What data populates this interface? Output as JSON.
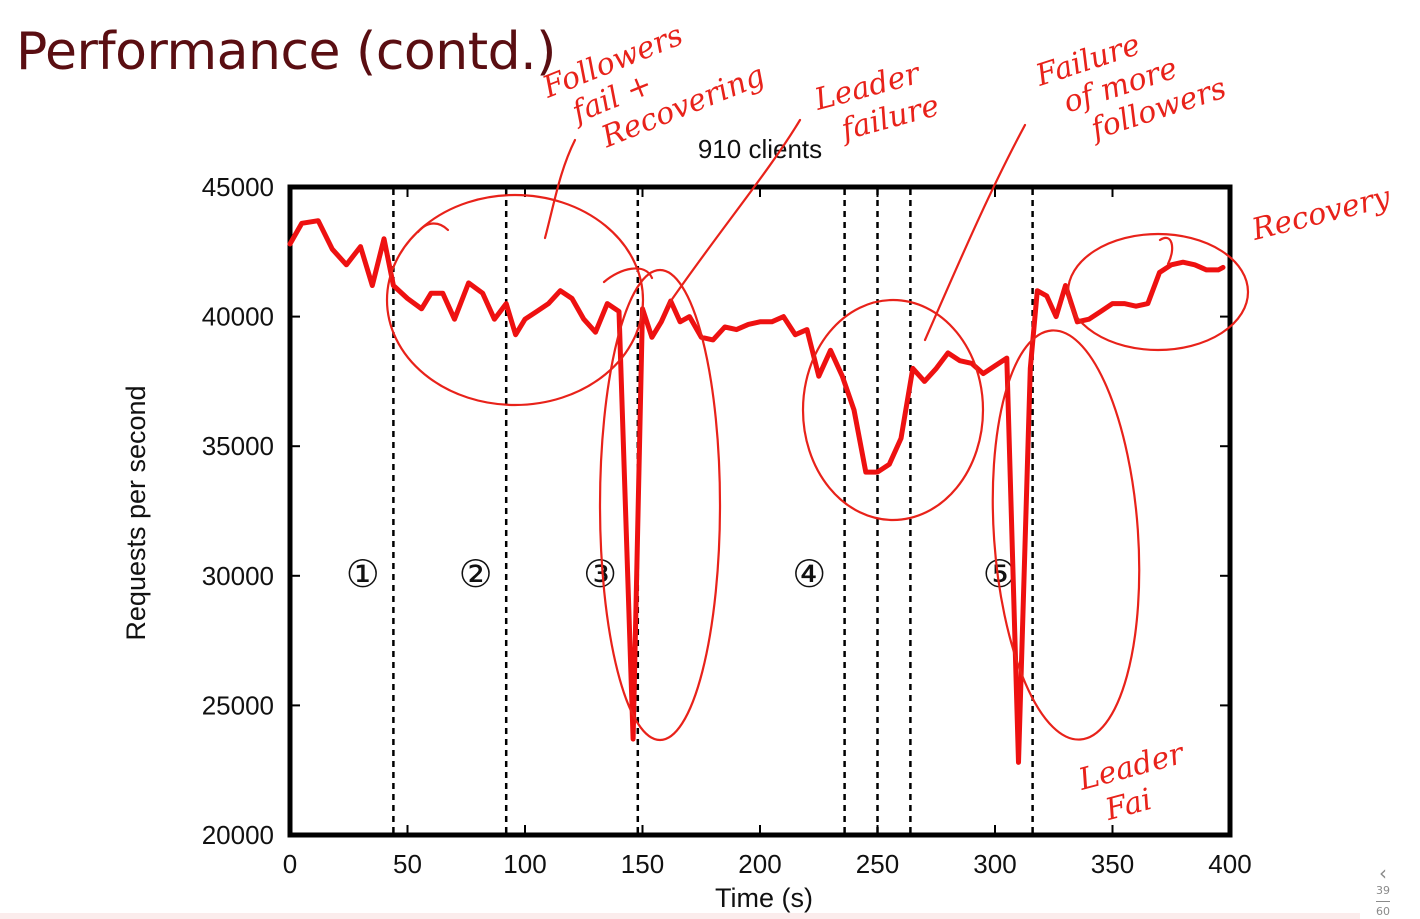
{
  "slide": {
    "title": "Performance (contd.)",
    "page_current": "39",
    "page_total": "60",
    "nav_icon": "chevron-left-icon"
  },
  "chart_data": {
    "type": "line",
    "title": "910 clients",
    "xlabel": "Time (s)",
    "ylabel": "Requests per second",
    "xlim": [
      0,
      400
    ],
    "ylim": [
      20000,
      45000
    ],
    "xticks": [
      0,
      50,
      100,
      150,
      200,
      250,
      300,
      350,
      400
    ],
    "yticks": [
      20000,
      25000,
      30000,
      35000,
      40000,
      45000
    ],
    "grid": false,
    "series": [
      {
        "color": "#ee1111",
        "x": [
          0,
          5,
          12,
          18,
          24,
          30,
          35,
          40,
          44,
          50,
          56,
          60,
          65,
          70,
          76,
          82,
          87,
          92,
          96,
          100,
          105,
          110,
          115,
          120,
          125,
          130,
          135,
          140,
          146,
          150,
          154,
          158,
          162,
          166,
          170,
          175,
          180,
          185,
          190,
          195,
          200,
          205,
          210,
          215,
          220,
          225,
          230,
          235,
          240,
          245,
          250,
          255,
          260,
          265,
          270,
          275,
          280,
          285,
          290,
          295,
          300,
          305,
          310,
          315,
          318,
          322,
          326,
          330,
          335,
          340,
          345,
          350,
          355,
          360,
          365,
          370,
          375,
          380,
          385,
          390,
          395,
          397
        ],
        "y": [
          42800,
          43600,
          43700,
          42600,
          42000,
          42700,
          41200,
          43000,
          41200,
          40700,
          40300,
          40900,
          40900,
          39900,
          41300,
          40900,
          39900,
          40500,
          39300,
          39900,
          40200,
          40500,
          41000,
          40700,
          39900,
          39400,
          40500,
          40200,
          23700,
          40300,
          39200,
          39800,
          40600,
          39800,
          40000,
          39200,
          39100,
          39600,
          39500,
          39700,
          39800,
          39800,
          40000,
          39300,
          39500,
          37700,
          38700,
          37700,
          36400,
          34000,
          34000,
          34300,
          35300,
          38000,
          37500,
          38000,
          38600,
          38300,
          38200,
          37800,
          38100,
          38400,
          22800,
          38000,
          41000,
          40800,
          40000,
          41200,
          39800,
          39900,
          40200,
          40500,
          40500,
          40400,
          40500,
          41700,
          42000,
          42100,
          42000,
          41800,
          41800,
          41900
        ]
      }
    ],
    "phase_lines": [
      44,
      92,
      148,
      236,
      250,
      264,
      316
    ],
    "phase_labels": [
      {
        "x": 31,
        "text": "①"
      },
      {
        "x": 79,
        "text": "②"
      },
      {
        "x": 132,
        "text": "③"
      },
      {
        "x": 221,
        "text": "④"
      },
      {
        "x": 302,
        "text": "⑤"
      }
    ],
    "annotations": [
      {
        "lines": [
          "Followers",
          "fail +",
          "Recovering"
        ]
      },
      {
        "lines": [
          "Leader",
          "failure"
        ]
      },
      {
        "lines": [
          "Failure",
          "of more",
          "followers"
        ]
      },
      {
        "lines": [
          "Recovery"
        ]
      },
      {
        "lines": [
          "Leader",
          "Fai"
        ]
      }
    ]
  }
}
